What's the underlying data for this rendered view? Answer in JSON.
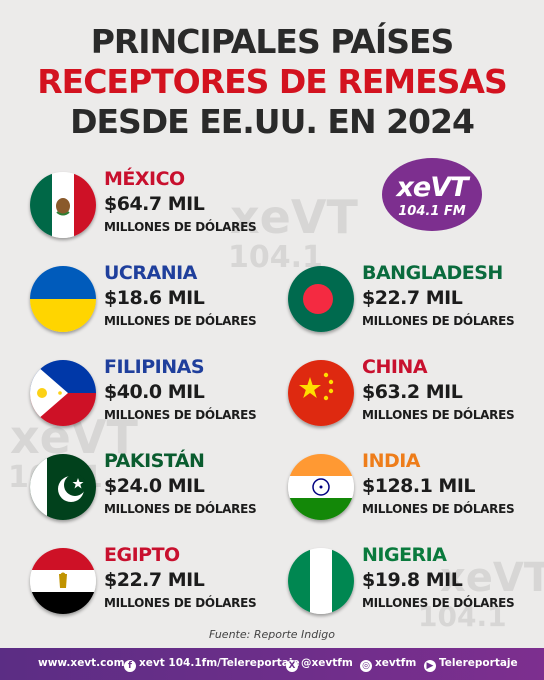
{
  "title": {
    "line1": "PRINCIPALES PAÍSES",
    "line2": "RECEPTORES DE REMESAS",
    "line3": "DESDE EE.UU. EN 2024"
  },
  "watermark": {
    "brand": "xeVT",
    "freq": "104.1"
  },
  "logo": {
    "brand": "xeVT",
    "freq": "104.1 FM",
    "color": "#7d2f8f"
  },
  "countries": [
    {
      "name": "MÉXICO",
      "amount": "$64.7 MIL",
      "unit": "MILLONES DE DÓLARES",
      "name_color": "#c8102e",
      "flag_icon": "mexico-flag-icon"
    },
    {
      "name": "UCRANIA",
      "amount": "$18.6 MIL",
      "unit": "MILLONES DE DÓLARES",
      "name_color": "#1f3f9c",
      "flag_icon": "ukraine-flag-icon"
    },
    {
      "name": "BANGLADESH",
      "amount": "$22.7 MIL",
      "unit": "MILLONES DE DÓLARES",
      "name_color": "#0a6b3d",
      "flag_icon": "bangladesh-flag-icon"
    },
    {
      "name": "FILIPINAS",
      "amount": "$40.0 MIL",
      "unit": "MILLONES DE DÓLARES",
      "name_color": "#1f3f9c",
      "flag_icon": "philippines-flag-icon"
    },
    {
      "name": "CHINA",
      "amount": "$63.2 MIL",
      "unit": "MILLONES DE DÓLARES",
      "name_color": "#c8102e",
      "flag_icon": "china-flag-icon"
    },
    {
      "name": "PAKISTÁN",
      "amount": "$24.0 MIL",
      "unit": "MILLONES DE DÓLARES",
      "name_color": "#0a5c2f",
      "flag_icon": "pakistan-flag-icon"
    },
    {
      "name": "INDIA",
      "amount": "$128.1 MIL",
      "unit": "MILLONES DE DÓLARES",
      "name_color": "#ee7d1a",
      "flag_icon": "india-flag-icon"
    },
    {
      "name": "EGIPTO",
      "amount": "$22.7 MIL",
      "unit": "MILLONES DE DÓLARES",
      "name_color": "#c8102e",
      "flag_icon": "egypt-flag-icon"
    },
    {
      "name": "NIGERIA",
      "amount": "$19.8 MIL",
      "unit": "MILLONES DE DÓLARES",
      "name_color": "#0a7a3d",
      "flag_icon": "nigeria-flag-icon"
    }
  ],
  "source": "Fuente: Reporte Indigo",
  "footer": {
    "website": "www.xevt.com",
    "facebook": "xevt 104.1fm/Telereportaje",
    "twitter": "@xevtfm",
    "instagram": "xevtfm",
    "youtube": "Telereportaje"
  }
}
